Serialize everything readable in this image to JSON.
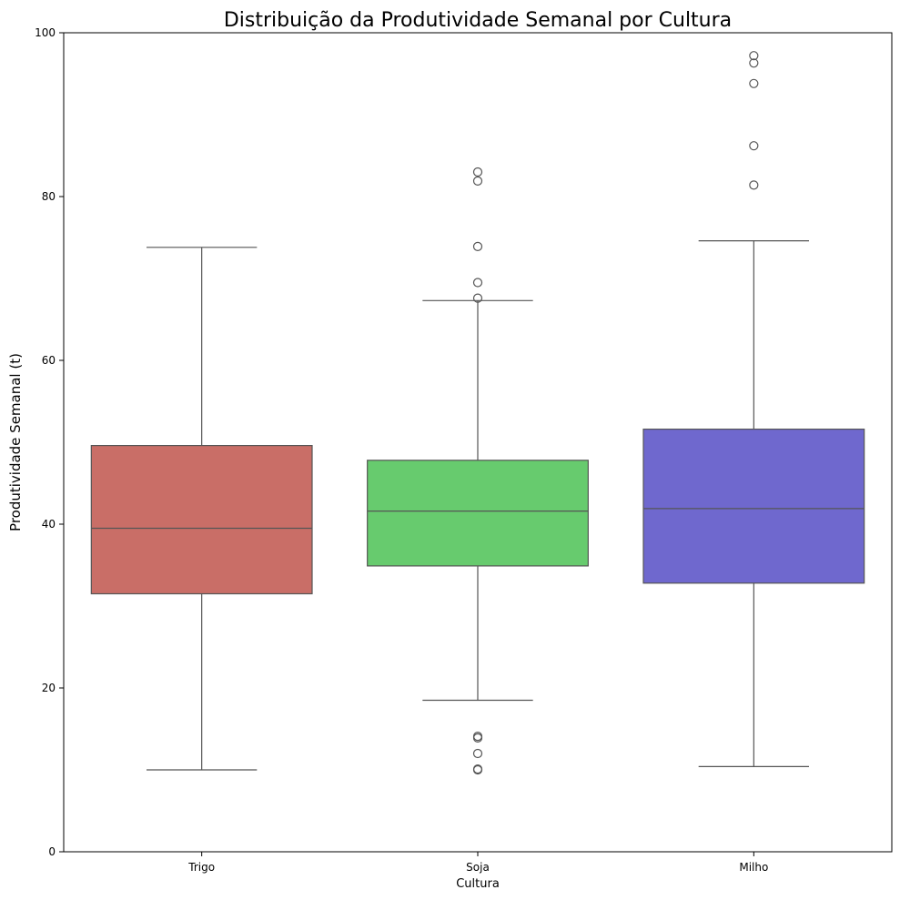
{
  "chart_data": {
    "type": "box",
    "title": "Distribuição da Produtividade Semanal por Cultura",
    "xlabel": "Cultura",
    "ylabel": "Produtividade Semanal (t)",
    "ylim": [
      0,
      100
    ],
    "yticks": [
      0,
      20,
      40,
      60,
      80,
      100
    ],
    "categories": [
      "Trigo",
      "Soja",
      "Milho"
    ],
    "grid": false,
    "legend": "none",
    "boxes": [
      {
        "category": "Trigo",
        "color": "#C96E67",
        "whisker_low": 10.0,
        "q1": 31.5,
        "median": 39.5,
        "q3": 49.6,
        "whisker_high": 73.8,
        "outliers": []
      },
      {
        "category": "Soja",
        "color": "#67CB6E",
        "whisker_low": 18.5,
        "q1": 34.9,
        "median": 41.6,
        "q3": 47.8,
        "whisker_high": 67.3,
        "outliers": [
          83.0,
          81.9,
          73.9,
          69.5,
          67.6,
          14.1,
          13.9,
          12.0,
          10.1,
          10.0
        ]
      },
      {
        "category": "Milho",
        "color": "#6F68CE",
        "whisker_low": 10.4,
        "q1": 32.8,
        "median": 41.9,
        "q3": 51.6,
        "whisker_high": 74.6,
        "outliers": [
          97.2,
          96.3,
          93.8,
          86.2,
          81.4
        ]
      }
    ]
  }
}
